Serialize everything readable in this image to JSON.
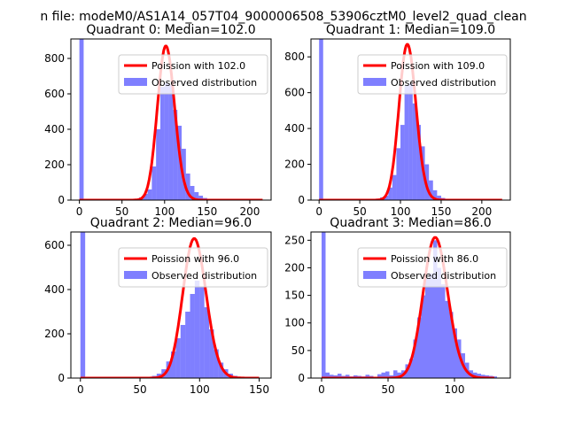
{
  "suptitle": "n file: modeM0/AS1A14_057T04_9000006508_53906cztM0_level2_quad_clean",
  "colors": {
    "hist": "#0000ff",
    "fit": "#ff0000",
    "axis": "#000000"
  },
  "chart_data": [
    {
      "type": "bar",
      "title": "Quadrant 0: Median=102.0",
      "xlim": [
        -10,
        225
      ],
      "ylim": [
        0,
        910
      ],
      "xticks": [
        0,
        50,
        100,
        150,
        200
      ],
      "yticks": [
        0,
        200,
        400,
        600,
        800
      ],
      "bin_width": 5,
      "hist": [
        [
          0,
          910
        ],
        [
          5,
          6
        ],
        [
          10,
          4
        ],
        [
          15,
          3
        ],
        [
          20,
          3
        ],
        [
          25,
          4
        ],
        [
          30,
          3
        ],
        [
          35,
          3
        ],
        [
          40,
          3
        ],
        [
          45,
          4
        ],
        [
          50,
          3
        ],
        [
          55,
          3
        ],
        [
          60,
          4
        ],
        [
          65,
          6
        ],
        [
          70,
          15
        ],
        [
          75,
          35
        ],
        [
          80,
          60
        ],
        [
          85,
          190
        ],
        [
          90,
          400
        ],
        [
          95,
          640
        ],
        [
          100,
          660
        ],
        [
          105,
          650
        ],
        [
          110,
          510
        ],
        [
          115,
          420
        ],
        [
          120,
          290
        ],
        [
          125,
          150
        ],
        [
          130,
          80
        ],
        [
          135,
          45
        ],
        [
          140,
          25
        ],
        [
          145,
          12
        ],
        [
          150,
          7
        ],
        [
          155,
          4
        ],
        [
          160,
          3
        ],
        [
          165,
          3
        ],
        [
          170,
          3
        ],
        [
          175,
          2
        ],
        [
          180,
          2
        ],
        [
          185,
          2
        ],
        [
          190,
          2
        ],
        [
          195,
          1
        ],
        [
          200,
          1
        ],
        [
          205,
          1
        ],
        [
          210,
          1
        ]
      ],
      "fit_mean": 102.0,
      "fit_peak": 870,
      "fit_range": [
        0,
        215
      ],
      "legend": [
        "Poission with 102.0",
        "Observed distribution"
      ]
    },
    {
      "type": "bar",
      "title": "Quadrant 1: Median=109.0",
      "xlim": [
        -10,
        235
      ],
      "ylim": [
        0,
        900
      ],
      "xticks": [
        0,
        50,
        100,
        150,
        200
      ],
      "yticks": [
        0,
        200,
        400,
        600,
        800
      ],
      "bin_width": 5,
      "hist": [
        [
          0,
          900
        ],
        [
          5,
          6
        ],
        [
          10,
          4
        ],
        [
          15,
          3
        ],
        [
          20,
          3
        ],
        [
          25,
          3
        ],
        [
          30,
          3
        ],
        [
          35,
          3
        ],
        [
          40,
          3
        ],
        [
          45,
          3
        ],
        [
          50,
          3
        ],
        [
          55,
          3
        ],
        [
          60,
          3
        ],
        [
          65,
          4
        ],
        [
          70,
          8
        ],
        [
          75,
          15
        ],
        [
          80,
          25
        ],
        [
          85,
          70
        ],
        [
          90,
          140
        ],
        [
          95,
          290
        ],
        [
          100,
          420
        ],
        [
          105,
          640
        ],
        [
          110,
          650
        ],
        [
          115,
          540
        ],
        [
          120,
          420
        ],
        [
          125,
          300
        ],
        [
          130,
          200
        ],
        [
          135,
          110
        ],
        [
          140,
          55
        ],
        [
          145,
          25
        ],
        [
          150,
          12
        ],
        [
          155,
          6
        ],
        [
          160,
          4
        ],
        [
          165,
          3
        ],
        [
          170,
          3
        ],
        [
          175,
          2
        ],
        [
          180,
          2
        ],
        [
          185,
          2
        ],
        [
          190,
          2
        ],
        [
          195,
          1
        ],
        [
          200,
          1
        ],
        [
          205,
          1
        ],
        [
          210,
          1
        ],
        [
          215,
          1
        ],
        [
          220,
          1
        ]
      ],
      "fit_mean": 109.0,
      "fit_peak": 870,
      "fit_range": [
        0,
        225
      ],
      "legend": [
        "Poission with 109.0",
        "Observed distribution"
      ]
    },
    {
      "type": "bar",
      "title": "Quadrant 2: Median=96.0",
      "xlim": [
        -8,
        160
      ],
      "ylim": [
        0,
        660
      ],
      "xticks": [
        0,
        50,
        100,
        150
      ],
      "yticks": [
        0,
        200,
        400,
        600
      ],
      "bin_width": 4,
      "hist": [
        [
          0,
          660
        ],
        [
          4,
          4
        ],
        [
          8,
          3
        ],
        [
          12,
          3
        ],
        [
          16,
          3
        ],
        [
          20,
          2
        ],
        [
          24,
          2
        ],
        [
          28,
          3
        ],
        [
          32,
          2
        ],
        [
          36,
          3
        ],
        [
          40,
          2
        ],
        [
          44,
          3
        ],
        [
          48,
          3
        ],
        [
          52,
          6
        ],
        [
          56,
          4
        ],
        [
          60,
          10
        ],
        [
          64,
          20
        ],
        [
          68,
          40
        ],
        [
          72,
          75
        ],
        [
          76,
          120
        ],
        [
          80,
          180
        ],
        [
          84,
          240
        ],
        [
          88,
          300
        ],
        [
          92,
          380
        ],
        [
          96,
          440
        ],
        [
          100,
          410
        ],
        [
          104,
          320
        ],
        [
          108,
          220
        ],
        [
          112,
          130
        ],
        [
          116,
          70
        ],
        [
          120,
          40
        ],
        [
          124,
          20
        ],
        [
          128,
          10
        ],
        [
          132,
          6
        ],
        [
          136,
          4
        ],
        [
          140,
          3
        ],
        [
          144,
          2
        ],
        [
          148,
          2
        ],
        [
          152,
          1
        ]
      ],
      "fit_mean": 96.0,
      "fit_peak": 630,
      "fit_range": [
        0,
        150
      ],
      "legend": [
        "Poission with 96.0",
        "Observed distribution"
      ]
    },
    {
      "type": "bar",
      "title": "Quadrant 3: Median=86.0",
      "xlim": [
        -8,
        142
      ],
      "ylim": [
        0,
        265
      ],
      "xticks": [
        0,
        50,
        100
      ],
      "yticks": [
        0,
        50,
        100,
        150,
        200,
        250
      ],
      "bin_width": 3,
      "hist": [
        [
          0,
          265
        ],
        [
          3,
          10
        ],
        [
          6,
          6
        ],
        [
          9,
          5
        ],
        [
          12,
          8
        ],
        [
          15,
          4
        ],
        [
          18,
          6
        ],
        [
          21,
          3
        ],
        [
          24,
          5
        ],
        [
          27,
          4
        ],
        [
          30,
          3
        ],
        [
          33,
          6
        ],
        [
          36,
          4
        ],
        [
          39,
          2
        ],
        [
          42,
          7
        ],
        [
          45,
          10
        ],
        [
          48,
          12
        ],
        [
          51,
          5
        ],
        [
          54,
          14
        ],
        [
          57,
          10
        ],
        [
          60,
          14
        ],
        [
          63,
          25
        ],
        [
          66,
          35
        ],
        [
          69,
          70
        ],
        [
          72,
          110
        ],
        [
          75,
          150
        ],
        [
          78,
          180
        ],
        [
          81,
          190
        ],
        [
          84,
          250
        ],
        [
          87,
          200
        ],
        [
          90,
          170
        ],
        [
          93,
          140
        ],
        [
          96,
          120
        ],
        [
          99,
          90
        ],
        [
          102,
          70
        ],
        [
          105,
          45
        ],
        [
          108,
          28
        ],
        [
          111,
          14
        ],
        [
          114,
          10
        ],
        [
          117,
          8
        ],
        [
          120,
          6
        ],
        [
          123,
          5
        ],
        [
          126,
          4
        ],
        [
          129,
          3
        ]
      ],
      "fit_mean": 86.0,
      "fit_peak": 255,
      "fit_range": [
        0,
        130
      ],
      "legend": [
        "Poission with 86.0",
        "Observed distribution"
      ]
    }
  ]
}
